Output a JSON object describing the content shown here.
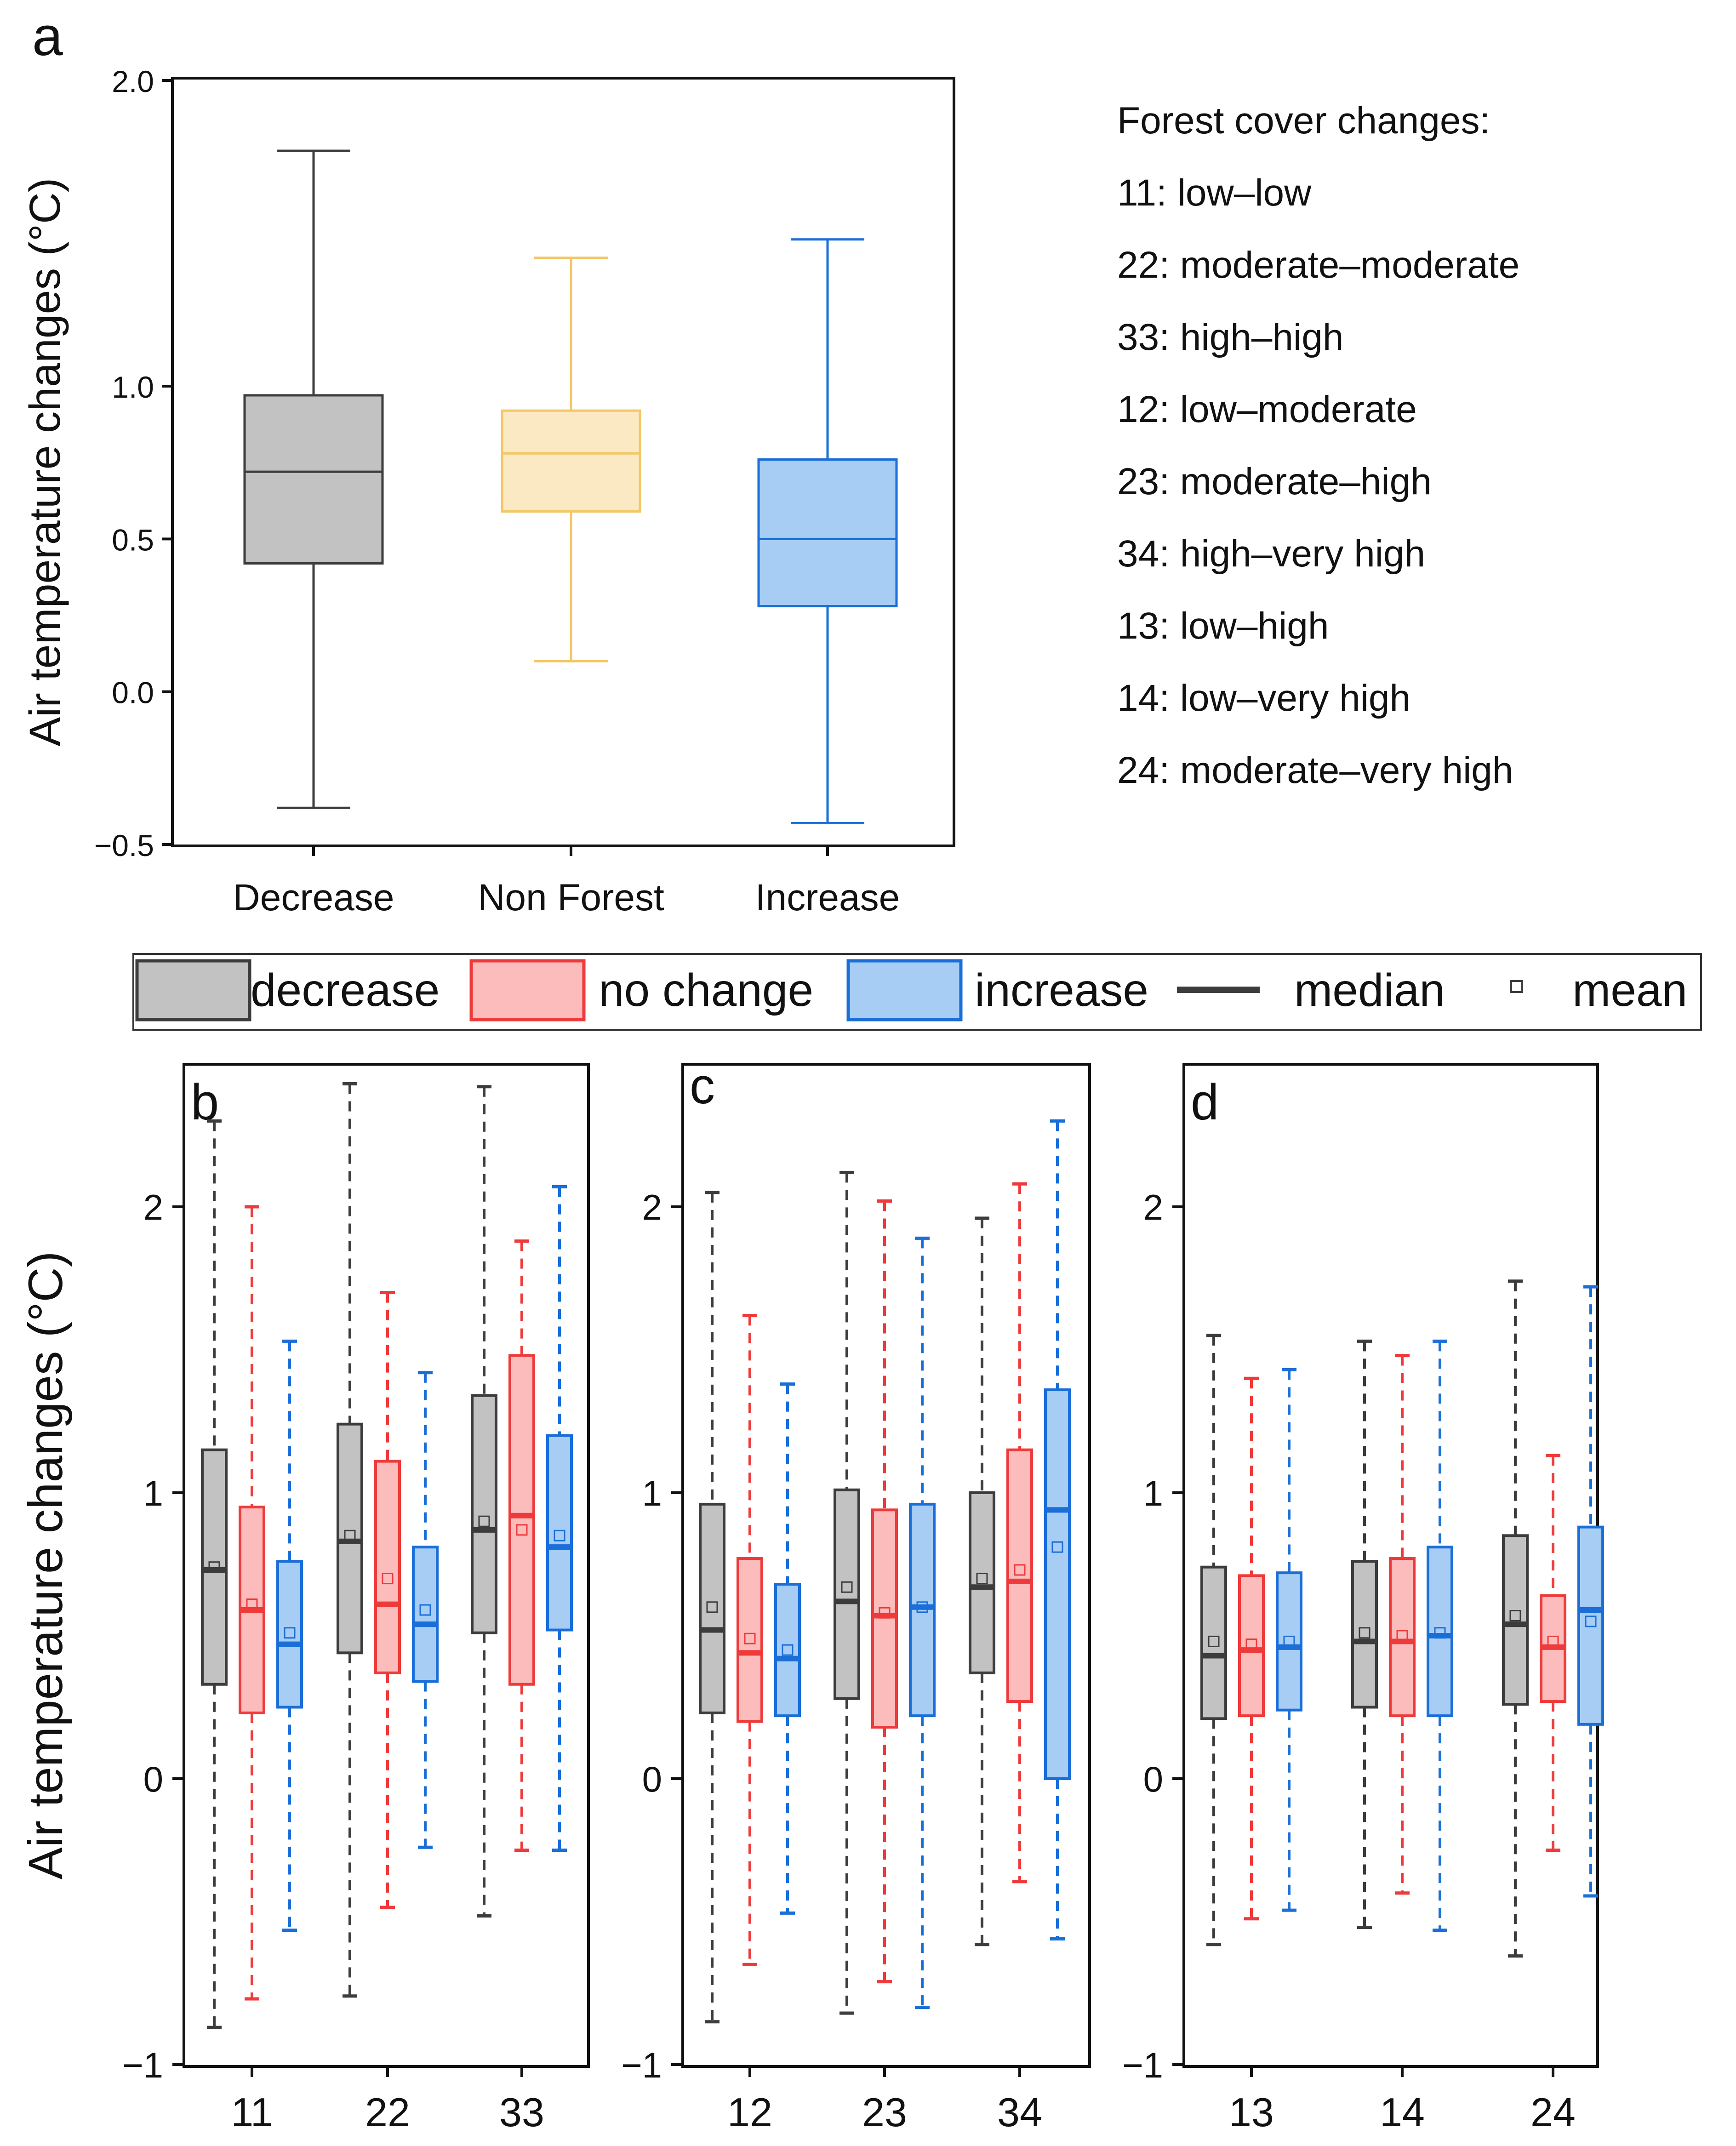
{
  "colors": {
    "gray_fill": "#c2c2c2",
    "gray_edge": "#3c3c3c",
    "yellow_fill": "#fbe9c4",
    "yellow_edge": "#f3c766",
    "blue_fill": "#a8cdf5",
    "blue_edge": "#1a6ed8",
    "red_fill": "#fdbcbc",
    "red_edge": "#ee3a3a",
    "median_dark": "#3c3c3c"
  },
  "legend": {
    "title": "Forest cover changes:",
    "entries": [
      "11: low–low",
      "22: moderate–moderate",
      "33: high–high",
      "12: low–moderate",
      "23: moderate–high",
      "34: high–very high",
      "13: low–high",
      "14: low–very high",
      "24: moderate–very high"
    ],
    "series_legend": {
      "decrease": "decrease",
      "no_change": "no change",
      "increase": "increase",
      "median": "median",
      "mean": "mean"
    }
  },
  "chart_data": [
    {
      "panel": "a",
      "type": "box",
      "ylabel": "Air temperature changes (°C)",
      "ylim": [
        -0.5,
        2.0
      ],
      "yticks": [
        -0.5,
        0.0,
        0.5,
        1.0,
        2.0
      ],
      "ytick_labels": [
        "−0.5",
        "0.0",
        "0.5",
        "1.0",
        "2.0"
      ],
      "categories": [
        "Decrease",
        "Non Forest",
        "Increase"
      ],
      "boxes": [
        {
          "name": "Decrease",
          "color": "gray",
          "whisker_low": -0.38,
          "q1": 0.42,
          "median": 0.72,
          "q3": 0.97,
          "whisker_high": 1.77
        },
        {
          "name": "Non Forest",
          "color": "yellow",
          "whisker_low": 0.1,
          "q1": 0.59,
          "median": 0.78,
          "q3": 0.92,
          "whisker_high": 1.42
        },
        {
          "name": "Increase",
          "color": "blue",
          "whisker_low": -0.43,
          "q1": 0.28,
          "median": 0.5,
          "q3": 0.76,
          "whisker_high": 1.48
        }
      ]
    },
    {
      "panel": "b",
      "type": "box",
      "ylabel": "Air temperature changes (°C)",
      "ylim": [
        -1,
        2.5
      ],
      "yticks": [
        -1,
        0,
        1,
        2
      ],
      "categories": [
        "11",
        "22",
        "33"
      ],
      "groups": [
        {
          "label": "11",
          "boxes": [
            {
              "series": "decrease",
              "whisker_low": -0.87,
              "q1": 0.33,
              "median": 0.73,
              "q3": 1.15,
              "whisker_high": 2.3,
              "mean": 0.74
            },
            {
              "series": "no change",
              "whisker_low": -0.77,
              "q1": 0.23,
              "median": 0.59,
              "q3": 0.95,
              "whisker_high": 2.0,
              "mean": 0.61
            },
            {
              "series": "increase",
              "whisker_low": -0.53,
              "q1": 0.25,
              "median": 0.47,
              "q3": 0.76,
              "whisker_high": 1.53,
              "mean": 0.51
            }
          ]
        },
        {
          "label": "22",
          "boxes": [
            {
              "series": "decrease",
              "whisker_low": -0.76,
              "q1": 0.44,
              "median": 0.83,
              "q3": 1.24,
              "whisker_high": 2.43,
              "mean": 0.85
            },
            {
              "series": "no change",
              "whisker_low": -0.45,
              "q1": 0.37,
              "median": 0.61,
              "q3": 1.11,
              "whisker_high": 1.7,
              "mean": 0.7
            },
            {
              "series": "increase",
              "whisker_low": -0.24,
              "q1": 0.34,
              "median": 0.54,
              "q3": 0.81,
              "whisker_high": 1.42,
              "mean": 0.59
            }
          ]
        },
        {
          "label": "33",
          "boxes": [
            {
              "series": "decrease",
              "whisker_low": -0.48,
              "q1": 0.51,
              "median": 0.87,
              "q3": 1.34,
              "whisker_high": 2.42,
              "mean": 0.9
            },
            {
              "series": "no change",
              "whisker_low": -0.25,
              "q1": 0.33,
              "median": 0.92,
              "q3": 1.48,
              "whisker_high": 1.88,
              "mean": 0.87
            },
            {
              "series": "increase",
              "whisker_low": -0.25,
              "q1": 0.52,
              "median": 0.81,
              "q3": 1.2,
              "whisker_high": 2.07,
              "mean": 0.85
            }
          ]
        }
      ]
    },
    {
      "panel": "c",
      "type": "box",
      "ylim": [
        -1,
        2.5
      ],
      "yticks": [
        -1,
        0,
        1,
        2
      ],
      "categories": [
        "12",
        "23",
        "34"
      ],
      "groups": [
        {
          "label": "12",
          "boxes": [
            {
              "series": "decrease",
              "whisker_low": -0.85,
              "q1": 0.23,
              "median": 0.52,
              "q3": 0.96,
              "whisker_high": 2.05,
              "mean": 0.6
            },
            {
              "series": "no change",
              "whisker_low": -0.65,
              "q1": 0.2,
              "median": 0.44,
              "q3": 0.77,
              "whisker_high": 1.62,
              "mean": 0.49
            },
            {
              "series": "increase",
              "whisker_low": -0.47,
              "q1": 0.22,
              "median": 0.42,
              "q3": 0.68,
              "whisker_high": 1.38,
              "mean": 0.45
            }
          ]
        },
        {
          "label": "23",
          "boxes": [
            {
              "series": "decrease",
              "whisker_low": -0.82,
              "q1": 0.28,
              "median": 0.62,
              "q3": 1.01,
              "whisker_high": 2.12,
              "mean": 0.67
            },
            {
              "series": "no change",
              "whisker_low": -0.71,
              "q1": 0.18,
              "median": 0.57,
              "q3": 0.94,
              "whisker_high": 2.02,
              "mean": 0.58
            },
            {
              "series": "increase",
              "whisker_low": -0.8,
              "q1": 0.22,
              "median": 0.6,
              "q3": 0.96,
              "whisker_high": 1.89,
              "mean": 0.6
            }
          ]
        },
        {
          "label": "34",
          "boxes": [
            {
              "series": "decrease",
              "whisker_low": -0.58,
              "q1": 0.37,
              "median": 0.67,
              "q3": 1.0,
              "whisker_high": 1.96,
              "mean": 0.7
            },
            {
              "series": "no change",
              "whisker_low": -0.36,
              "q1": 0.27,
              "median": 0.69,
              "q3": 1.15,
              "whisker_high": 2.08,
              "mean": 0.73
            },
            {
              "series": "increase",
              "whisker_low": -0.56,
              "q1": 0.0,
              "median": 0.94,
              "q3": 1.36,
              "whisker_high": 2.3,
              "mean": 0.81
            }
          ]
        }
      ]
    },
    {
      "panel": "d",
      "type": "box",
      "ylim": [
        -1,
        2.5
      ],
      "yticks": [
        -1,
        0,
        1,
        2
      ],
      "categories": [
        "13",
        "14",
        "24"
      ],
      "groups": [
        {
          "label": "13",
          "boxes": [
            {
              "series": "decrease",
              "whisker_low": -0.58,
              "q1": 0.21,
              "median": 0.43,
              "q3": 0.74,
              "whisker_high": 1.55,
              "mean": 0.48
            },
            {
              "series": "no change",
              "whisker_low": -0.49,
              "q1": 0.22,
              "median": 0.45,
              "q3": 0.71,
              "whisker_high": 1.4,
              "mean": 0.47
            },
            {
              "series": "increase",
              "whisker_low": -0.46,
              "q1": 0.24,
              "median": 0.46,
              "q3": 0.72,
              "whisker_high": 1.43,
              "mean": 0.48
            }
          ]
        },
        {
          "label": "14",
          "boxes": [
            {
              "series": "decrease",
              "whisker_low": -0.52,
              "q1": 0.25,
              "median": 0.48,
              "q3": 0.76,
              "whisker_high": 1.53,
              "mean": 0.51
            },
            {
              "series": "no change",
              "whisker_low": -0.4,
              "q1": 0.22,
              "median": 0.48,
              "q3": 0.77,
              "whisker_high": 1.48,
              "mean": 0.5
            },
            {
              "series": "increase",
              "whisker_low": -0.53,
              "q1": 0.22,
              "median": 0.5,
              "q3": 0.81,
              "whisker_high": 1.53,
              "mean": 0.51
            }
          ]
        },
        {
          "label": "24",
          "boxes": [
            {
              "series": "decrease",
              "whisker_low": -0.62,
              "q1": 0.26,
              "median": 0.54,
              "q3": 0.85,
              "whisker_high": 1.74,
              "mean": 0.57
            },
            {
              "series": "no change",
              "whisker_low": -0.25,
              "q1": 0.27,
              "median": 0.46,
              "q3": 0.64,
              "whisker_high": 1.13,
              "mean": 0.48
            },
            {
              "series": "increase",
              "whisker_low": -0.41,
              "q1": 0.19,
              "median": 0.59,
              "q3": 0.88,
              "whisker_high": 1.72,
              "mean": 0.55
            }
          ]
        }
      ]
    }
  ]
}
